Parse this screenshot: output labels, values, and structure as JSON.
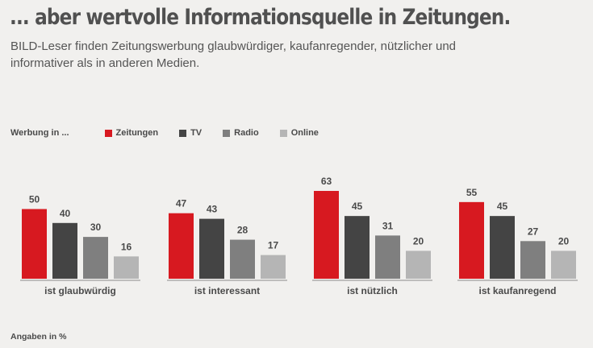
{
  "header": {
    "title": "... aber wertvolle Informationsquelle in Zeitungen.",
    "subtitle": "BILD-Leser finden Zeitungswerbung glaubwürdiger, kaufanregender, nützlicher und informativer als in anderen Medien."
  },
  "legend": {
    "lead": "Werbung in ...",
    "items": [
      {
        "label": "Zeitungen",
        "color": "#d71920"
      },
      {
        "label": "TV",
        "color": "#444444"
      },
      {
        "label": "Radio",
        "color": "#7f7f7f"
      },
      {
        "label": "Online",
        "color": "#b5b5b5"
      }
    ]
  },
  "footnote": "Angaben in %",
  "chart_data": {
    "type": "bar",
    "categories": [
      "ist glaubwürdig",
      "ist interessant",
      "ist nützlich",
      "ist kaufanregend"
    ],
    "series": [
      {
        "name": "Zeitungen",
        "color": "#d71920",
        "values": [
          50,
          47,
          63,
          55
        ]
      },
      {
        "name": "TV",
        "color": "#444444",
        "values": [
          40,
          43,
          45,
          45
        ]
      },
      {
        "name": "Radio",
        "color": "#7f7f7f",
        "values": [
          30,
          28,
          31,
          27
        ]
      },
      {
        "name": "Online",
        "color": "#b5b5b5",
        "values": [
          16,
          17,
          20,
          20
        ]
      }
    ],
    "ylim": [
      0,
      70
    ],
    "legend_position": "top-left",
    "grid": false,
    "unit": "%"
  }
}
